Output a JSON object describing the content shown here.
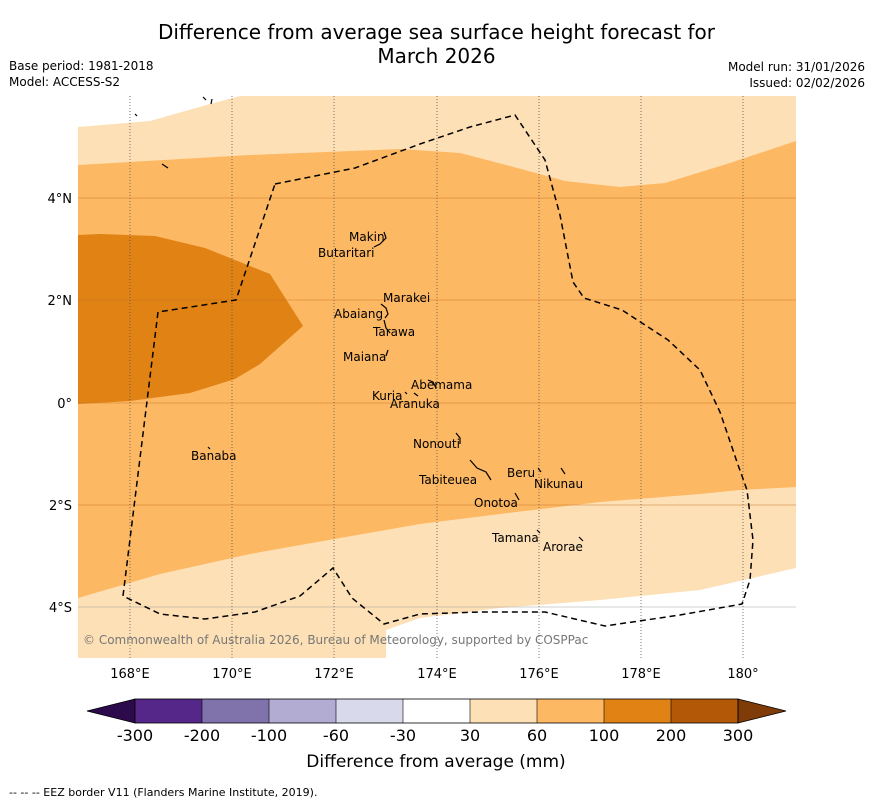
{
  "title_line1": "Difference from average sea surface height forecast for",
  "title_line2": "March 2026",
  "base_period": "Base period: 1981-2018",
  "model": "Model: ACCESS-S2",
  "model_run": "Model run: 31/01/2026",
  "issued": "Issued: 02/02/2026",
  "copyright": "© Commonwealth of Australia 2026, Bureau of Meteorology, supported by COSPPac",
  "longitude_labels": [
    "168°E",
    "170°E",
    "172°E",
    "174°E",
    "176°E",
    "178°E",
    "180°"
  ],
  "latitude_labels": [
    "4°N",
    "2°N",
    "0°",
    "2°S",
    "4°S"
  ],
  "islands": [
    "Makin",
    "Butaritari",
    "Marakei",
    "Abaiang",
    "Tarawa",
    "Maiana",
    "Abemama",
    "Kuria",
    "Aranuka",
    "Banaba",
    "Nonouti",
    "Tabiteuea",
    "Beru",
    "Nikunau",
    "Onotoa",
    "Tamana",
    "Arorae"
  ],
  "colorbar": {
    "label": "Difference from average (mm)",
    "ticks": [
      "-300",
      "-200",
      "-100",
      "-60",
      "-30",
      "30",
      "60",
      "100",
      "200",
      "300"
    ],
    "colors": {
      "under": "#2d0a4b",
      "c1": "#542788",
      "c2": "#8073ac",
      "c3": "#b2abd2",
      "c4": "#d8daeb",
      "c5": "#ffffff",
      "c6": "#fee0b6",
      "c7": "#fdb863",
      "c8": "#e08214",
      "c9": "#b35806",
      "over": "#7f3b08"
    }
  },
  "footnote": "--  --  -- EEZ border V11 (Flanders Marine Institute, 2019)."
}
